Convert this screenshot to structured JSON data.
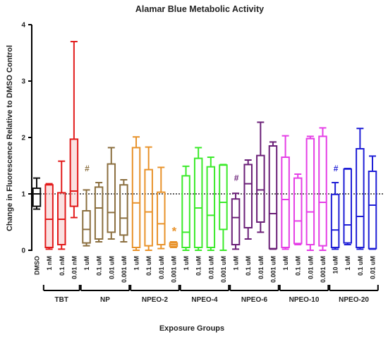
{
  "chart_data": {
    "type": "box",
    "title": "Alamar Blue Metabolic Activity",
    "xlabel": "Exposure Groups",
    "ylabel": "Change in Fluorescence Relative to DMSO Control",
    "ylim": [
      0,
      4
    ],
    "yticks": [
      "0",
      "1",
      "2",
      "3",
      "4"
    ],
    "reference_line": 1,
    "groups": [
      {
        "name": "",
        "members": [
          0
        ]
      },
      {
        "name": "TBT",
        "members": [
          1,
          2,
          3
        ]
      },
      {
        "name": "NP",
        "members": [
          4,
          5,
          6,
          7
        ]
      },
      {
        "name": "NPEO-2",
        "members": [
          8,
          9,
          10,
          11
        ]
      },
      {
        "name": "NPEO-4",
        "members": [
          12,
          13,
          14,
          15
        ]
      },
      {
        "name": "NPEO-6",
        "members": [
          16,
          17,
          18,
          19
        ]
      },
      {
        "name": "NPEO-10",
        "members": [
          20,
          21,
          22,
          23
        ]
      },
      {
        "name": "NPEO-20",
        "members": [
          24,
          25,
          26,
          27
        ]
      }
    ],
    "boxes": [
      {
        "label": "DMSO",
        "color": "#111111",
        "min": 0.73,
        "q1": 0.78,
        "median": 1.0,
        "q3": 1.1,
        "max": 1.28,
        "fill": null
      },
      {
        "label": "1 nM",
        "color": "#e21b1b",
        "min": 0.02,
        "q1": 0.05,
        "median": 0.55,
        "q3": 1.16,
        "max": 1.18,
        "fill": "#f6c8c8"
      },
      {
        "label": "0.1 nM",
        "color": "#e21b1b",
        "min": 0.02,
        "q1": 0.1,
        "median": 0.55,
        "q3": 1.02,
        "max": 1.58,
        "fill": "#f6c8c8"
      },
      {
        "label": "0.01 nM",
        "color": "#e21b1b",
        "min": 0.58,
        "q1": 0.78,
        "median": 1.05,
        "q3": 1.97,
        "max": 3.7,
        "fill": "#f6c8c8"
      },
      {
        "label": "1 uM",
        "color": "#8b6f3f",
        "min": 0.08,
        "q1": 0.13,
        "median": 0.37,
        "q3": 0.7,
        "max": 1.07,
        "fill": null
      },
      {
        "label": "0.1 uM",
        "color": "#8b6f3f",
        "min": 0.15,
        "q1": 0.2,
        "median": 0.75,
        "q3": 1.12,
        "max": 1.2,
        "fill": null
      },
      {
        "label": "0.01 uM",
        "color": "#8b6f3f",
        "min": 0.2,
        "q1": 0.32,
        "median": 0.67,
        "q3": 1.53,
        "max": 1.82,
        "fill": null
      },
      {
        "label": "0.001 uM",
        "color": "#8b6f3f",
        "min": 0.15,
        "q1": 0.27,
        "median": 0.57,
        "q3": 1.16,
        "max": 1.25,
        "fill": null
      },
      {
        "label": "1 uM",
        "color": "#e8922a",
        "min": 0.0,
        "q1": 0.05,
        "median": 0.84,
        "q3": 1.82,
        "max": 2.01,
        "fill": null
      },
      {
        "label": "0.1 uM",
        "color": "#e8922a",
        "min": 0.0,
        "q1": 0.08,
        "median": 0.68,
        "q3": 1.43,
        "max": 1.83,
        "fill": null
      },
      {
        "label": "0.01 uM",
        "color": "#e8922a",
        "min": 0.03,
        "q1": 0.1,
        "median": 0.47,
        "q3": 1.03,
        "max": 1.47,
        "fill": null
      },
      {
        "label": "0.001 uM",
        "color": "#e8922a",
        "min": 0.05,
        "q1": 0.07,
        "median": 0.1,
        "q3": 0.13,
        "max": 0.15,
        "fill": null
      },
      {
        "label": "1 uM",
        "color": "#3bea2a",
        "min": 0.0,
        "q1": 0.05,
        "median": 0.32,
        "q3": 1.32,
        "max": 1.49,
        "fill": null
      },
      {
        "label": "0.1 uM",
        "color": "#3bea2a",
        "min": 0.0,
        "q1": 0.05,
        "median": 0.75,
        "q3": 1.63,
        "max": 1.82,
        "fill": null
      },
      {
        "label": "0.01 uM",
        "color": "#3bea2a",
        "min": 0.0,
        "q1": 0.05,
        "median": 0.62,
        "q3": 1.48,
        "max": 1.65,
        "fill": null
      },
      {
        "label": "0.001 uM",
        "color": "#3bea2a",
        "min": 0.0,
        "q1": 0.37,
        "median": 0.85,
        "q3": 1.51,
        "max": 1.52,
        "fill": null
      },
      {
        "label": "1 uM",
        "color": "#6a1f77",
        "min": 0.02,
        "q1": 0.1,
        "median": 0.58,
        "q3": 0.91,
        "max": 1.01,
        "fill": null
      },
      {
        "label": "0.1 uM",
        "color": "#6a1f77",
        "min": 0.2,
        "q1": 0.4,
        "median": 1.18,
        "q3": 1.52,
        "max": 1.6,
        "fill": null
      },
      {
        "label": "0.01 uM",
        "color": "#6a1f77",
        "min": 0.32,
        "q1": 0.5,
        "median": 1.07,
        "q3": 1.68,
        "max": 2.27,
        "fill": null
      },
      {
        "label": "0.001 uM",
        "color": "#6a1f77",
        "min": 0.02,
        "q1": 0.03,
        "median": 0.65,
        "q3": 1.85,
        "max": 1.92,
        "fill": null
      },
      {
        "label": "1 uM",
        "color": "#e53ee6",
        "min": 0.02,
        "q1": 0.05,
        "median": 0.9,
        "q3": 1.65,
        "max": 2.03,
        "fill": null
      },
      {
        "label": "0.1 uM",
        "color": "#e53ee6",
        "min": 0.1,
        "q1": 0.12,
        "median": 0.52,
        "q3": 1.28,
        "max": 1.35,
        "fill": null
      },
      {
        "label": "0.01 uM",
        "color": "#e53ee6",
        "min": 0.0,
        "q1": 0.1,
        "median": 0.68,
        "q3": 1.98,
        "max": 2.02,
        "fill": null
      },
      {
        "label": "0.001 uM",
        "color": "#e53ee6",
        "min": 0.0,
        "q1": 0.08,
        "median": 0.85,
        "q3": 2.02,
        "max": 2.17,
        "fill": null
      },
      {
        "label": "10 uM",
        "color": "#1f1fd6",
        "min": 0.02,
        "q1": 0.05,
        "median": 0.36,
        "q3": 0.99,
        "max": 1.2,
        "fill": null
      },
      {
        "label": "1 uM",
        "color": "#1f1fd6",
        "min": 0.1,
        "q1": 0.13,
        "median": 0.45,
        "q3": 1.44,
        "max": 1.45,
        "fill": null
      },
      {
        "label": "0.1 uM",
        "color": "#1f1fd6",
        "min": 0.02,
        "q1": 0.05,
        "median": 0.6,
        "q3": 1.8,
        "max": 2.16,
        "fill": null
      },
      {
        "label": "0.01 uM",
        "color": "#1f1fd6",
        "min": 0.02,
        "q1": 0.03,
        "median": 0.8,
        "q3": 1.4,
        "max": 1.67,
        "fill": null
      }
    ],
    "annotations": [
      {
        "text": "#",
        "box_index": 4,
        "y": 1.45,
        "color": "#8b6f3f"
      },
      {
        "text": "*",
        "box_index": 11,
        "y": 0.38,
        "color": "#e8922a"
      },
      {
        "text": "#",
        "box_index": 16,
        "y": 1.28,
        "color": "#6a1f77"
      },
      {
        "text": "#",
        "box_index": 24,
        "y": 1.45,
        "color": "#1f1fd6"
      }
    ]
  }
}
